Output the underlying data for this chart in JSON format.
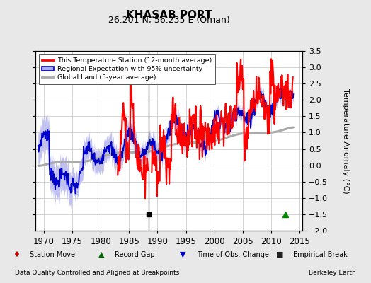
{
  "title": "KHASAB PORT",
  "subtitle": "26.201 N, 56.235 E (Oman)",
  "ylabel": "Temperature Anomaly (°C)",
  "footer_left": "Data Quality Controlled and Aligned at Breakpoints",
  "footer_right": "Berkeley Earth",
  "xlim": [
    1968.5,
    2015.5
  ],
  "ylim": [
    -2.0,
    3.5
  ],
  "yticks": [
    -2,
    -1.5,
    -1,
    -0.5,
    0,
    0.5,
    1,
    1.5,
    2,
    2.5,
    3,
    3.5
  ],
  "xticks": [
    1970,
    1975,
    1980,
    1985,
    1990,
    1995,
    2000,
    2005,
    2010,
    2015
  ],
  "background_color": "#e8e8e8",
  "plot_bg_color": "#ffffff",
  "empirical_break_x": 1988.5,
  "record_gap_x": 2012.5,
  "marker_y": -1.5,
  "vertical_line_x": 1988.5,
  "red_line_color": "#ff0000",
  "blue_line_color": "#0000cc",
  "blue_fill_color": "#aaaaee",
  "gray_line_color": "#aaaaaa",
  "legend_items": [
    "This Temperature Station (12-month average)",
    "Regional Expectation with 95% uncertainty",
    "Global Land (5-year average)"
  ]
}
